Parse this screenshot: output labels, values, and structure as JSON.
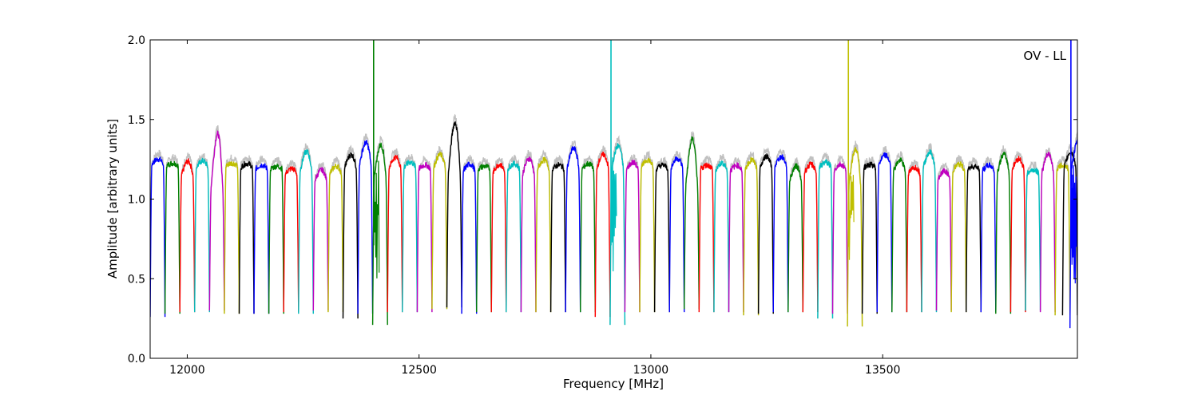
{
  "chart_data": {
    "type": "line",
    "title": "",
    "annotation": "OV - LL",
    "xlabel": "Frequency [MHz]",
    "ylabel": "Amplitude [arbitrary units]",
    "xlim": [
      11920,
      13920
    ],
    "ylim": [
      0.0,
      2.0
    ],
    "xticks": [
      12000,
      12500,
      13000,
      13500
    ],
    "xtick_labels": [
      "12000",
      "12500",
      "13000",
      "13500"
    ],
    "yticks": [
      0.0,
      0.5,
      1.0,
      1.5,
      2.0
    ],
    "ytick_labels": [
      "0.0",
      "0.5",
      "1.0",
      "1.5",
      "2.0"
    ],
    "grid": false,
    "legend": "none",
    "band_width_mhz": 32,
    "background_trace_color": "#c0c0c0",
    "colors": [
      "#0000ff",
      "#008000",
      "#ff0000",
      "#00bfbf",
      "#bf00bf",
      "#bfbf00",
      "#000000"
    ],
    "series": [
      {
        "center": 11936,
        "level": 1.22,
        "peak": 1.26,
        "min": 0.26,
        "color": "#0000ff"
      },
      {
        "center": 11968,
        "level": 1.21,
        "peak": 1.23,
        "min": 0.28,
        "color": "#008000"
      },
      {
        "center": 12000,
        "level": 1.15,
        "peak": 1.26,
        "min": 0.29,
        "color": "#ff0000"
      },
      {
        "center": 12032,
        "level": 1.2,
        "peak": 1.25,
        "min": 0.29,
        "color": "#00bfbf"
      },
      {
        "center": 12064,
        "level": 1.08,
        "peak": 1.5,
        "min": 0.3,
        "color": "#bf00bf"
      },
      {
        "center": 12096,
        "level": 1.21,
        "peak": 1.23,
        "min": 0.28,
        "color": "#bfbf00"
      },
      {
        "center": 12128,
        "level": 1.2,
        "peak": 1.23,
        "min": 0.28,
        "color": "#000000"
      },
      {
        "center": 12160,
        "level": 1.19,
        "peak": 1.22,
        "min": 0.28,
        "color": "#0000ff"
      },
      {
        "center": 12192,
        "level": 1.19,
        "peak": 1.21,
        "min": 0.28,
        "color": "#008000"
      },
      {
        "center": 12224,
        "level": 1.16,
        "peak": 1.2,
        "min": 0.29,
        "color": "#ff0000"
      },
      {
        "center": 12256,
        "level": 1.18,
        "peak": 1.33,
        "min": 0.28,
        "color": "#00bfbf"
      },
      {
        "center": 12288,
        "level": 1.12,
        "peak": 1.2,
        "min": 0.3,
        "color": "#bf00bf"
      },
      {
        "center": 12320,
        "level": 1.16,
        "peak": 1.22,
        "min": 0.29,
        "color": "#bfbf00"
      },
      {
        "center": 12352,
        "level": 1.2,
        "peak": 1.3,
        "min": 0.25,
        "color": "#000000"
      },
      {
        "center": 12384,
        "level": 1.22,
        "peak": 1.39,
        "min": 0.28,
        "color": "#0000ff"
      },
      {
        "center": 12416,
        "level": 1.15,
        "peak": 1.39,
        "min": 0.21,
        "color": "#008000",
        "spike": 2.0
      },
      {
        "center": 12448,
        "level": 1.2,
        "peak": 1.28,
        "min": 0.29,
        "color": "#ff0000"
      },
      {
        "center": 12480,
        "level": 1.2,
        "peak": 1.24,
        "min": 0.29,
        "color": "#00bfbf"
      },
      {
        "center": 12512,
        "level": 1.19,
        "peak": 1.22,
        "min": 0.29,
        "color": "#bf00bf"
      },
      {
        "center": 12544,
        "level": 1.2,
        "peak": 1.3,
        "min": 0.31,
        "color": "#bfbf00"
      },
      {
        "center": 12576,
        "level": 1.18,
        "peak": 1.56,
        "min": 0.32,
        "color": "#000000"
      },
      {
        "center": 12608,
        "level": 1.18,
        "peak": 1.23,
        "min": 0.28,
        "color": "#0000ff"
      },
      {
        "center": 12640,
        "level": 1.19,
        "peak": 1.21,
        "min": 0.29,
        "color": "#008000"
      },
      {
        "center": 12672,
        "level": 1.17,
        "peak": 1.23,
        "min": 0.29,
        "color": "#ff0000"
      },
      {
        "center": 12704,
        "level": 1.19,
        "peak": 1.23,
        "min": 0.29,
        "color": "#00bfbf"
      },
      {
        "center": 12736,
        "level": 1.16,
        "peak": 1.28,
        "min": 0.29,
        "color": "#bf00bf"
      },
      {
        "center": 12768,
        "level": 1.19,
        "peak": 1.26,
        "min": 0.29,
        "color": "#bfbf00"
      },
      {
        "center": 12800,
        "level": 1.19,
        "peak": 1.22,
        "min": 0.29,
        "color": "#000000"
      },
      {
        "center": 12832,
        "level": 1.2,
        "peak": 1.35,
        "min": 0.29,
        "color": "#0000ff"
      },
      {
        "center": 12864,
        "level": 1.19,
        "peak": 1.23,
        "min": 0.29,
        "color": "#008000"
      },
      {
        "center": 12896,
        "level": 1.2,
        "peak": 1.3,
        "min": 0.26,
        "color": "#ff0000"
      },
      {
        "center": 12928,
        "level": 1.2,
        "peak": 1.37,
        "min": 0.21,
        "color": "#00bfbf",
        "spike": 2.0
      },
      {
        "center": 12960,
        "level": 1.19,
        "peak": 1.24,
        "min": 0.29,
        "color": "#bf00bf"
      },
      {
        "center": 12992,
        "level": 1.2,
        "peak": 1.26,
        "min": 0.29,
        "color": "#bfbf00"
      },
      {
        "center": 13024,
        "level": 1.19,
        "peak": 1.22,
        "min": 0.29,
        "color": "#000000"
      },
      {
        "center": 13056,
        "level": 1.2,
        "peak": 1.27,
        "min": 0.29,
        "color": "#0000ff"
      },
      {
        "center": 13088,
        "level": 1.1,
        "peak": 1.45,
        "min": 0.31,
        "color": "#008000"
      },
      {
        "center": 13120,
        "level": 1.19,
        "peak": 1.22,
        "min": 0.29,
        "color": "#ff0000"
      },
      {
        "center": 13152,
        "level": 1.18,
        "peak": 1.24,
        "min": 0.29,
        "color": "#00bfbf"
      },
      {
        "center": 13184,
        "level": 1.18,
        "peak": 1.22,
        "min": 0.29,
        "color": "#bf00bf"
      },
      {
        "center": 13216,
        "level": 1.19,
        "peak": 1.26,
        "min": 0.27,
        "color": "#bfbf00"
      },
      {
        "center": 13248,
        "level": 1.2,
        "peak": 1.29,
        "min": 0.28,
        "color": "#000000"
      },
      {
        "center": 13280,
        "level": 1.21,
        "peak": 1.28,
        "min": 0.29,
        "color": "#0000ff"
      },
      {
        "center": 13312,
        "level": 1.12,
        "peak": 1.23,
        "min": 0.29,
        "color": "#008000"
      },
      {
        "center": 13344,
        "level": 1.17,
        "peak": 1.23,
        "min": 0.29,
        "color": "#ff0000"
      },
      {
        "center": 13376,
        "level": 1.2,
        "peak": 1.24,
        "min": 0.25,
        "color": "#00bfbf"
      },
      {
        "center": 13408,
        "level": 1.18,
        "peak": 1.23,
        "min": 0.28,
        "color": "#bf00bf"
      },
      {
        "center": 13440,
        "level": 1.1,
        "peak": 1.37,
        "min": 0.2,
        "color": "#bfbf00",
        "spike": 2.0
      },
      {
        "center": 13472,
        "level": 1.2,
        "peak": 1.22,
        "min": 0.28,
        "color": "#000000"
      },
      {
        "center": 13504,
        "level": 1.22,
        "peak": 1.29,
        "min": 0.29,
        "color": "#0000ff"
      },
      {
        "center": 13536,
        "level": 1.18,
        "peak": 1.26,
        "min": 0.29,
        "color": "#008000"
      },
      {
        "center": 13568,
        "level": 1.16,
        "peak": 1.21,
        "min": 0.29,
        "color": "#ff0000"
      },
      {
        "center": 13600,
        "level": 1.2,
        "peak": 1.32,
        "min": 0.29,
        "color": "#00bfbf"
      },
      {
        "center": 13632,
        "level": 1.13,
        "peak": 1.19,
        "min": 0.3,
        "color": "#bf00bf"
      },
      {
        "center": 13664,
        "level": 1.18,
        "peak": 1.23,
        "min": 0.29,
        "color": "#bfbf00"
      },
      {
        "center": 13696,
        "level": 1.19,
        "peak": 1.21,
        "min": 0.29,
        "color": "#000000"
      },
      {
        "center": 13728,
        "level": 1.18,
        "peak": 1.22,
        "min": 0.29,
        "color": "#0000ff"
      },
      {
        "center": 13760,
        "level": 1.17,
        "peak": 1.31,
        "min": 0.28,
        "color": "#008000"
      },
      {
        "center": 13792,
        "level": 1.19,
        "peak": 1.27,
        "min": 0.29,
        "color": "#ff0000"
      },
      {
        "center": 13824,
        "level": 1.16,
        "peak": 1.19,
        "min": 0.3,
        "color": "#00bfbf"
      },
      {
        "center": 13856,
        "level": 1.17,
        "peak": 1.31,
        "min": 0.29,
        "color": "#bf00bf"
      },
      {
        "center": 13888,
        "level": 1.19,
        "peak": 1.22,
        "min": 0.27,
        "color": "#bfbf00"
      },
      {
        "center": 13904,
        "level": 1.2,
        "peak": 1.32,
        "min": 0.27,
        "color": "#000000"
      },
      {
        "center": 13920,
        "level": 1.2,
        "peak": 1.41,
        "min": 0.19,
        "color": "#0000ff",
        "spike": 2.0
      }
    ]
  }
}
